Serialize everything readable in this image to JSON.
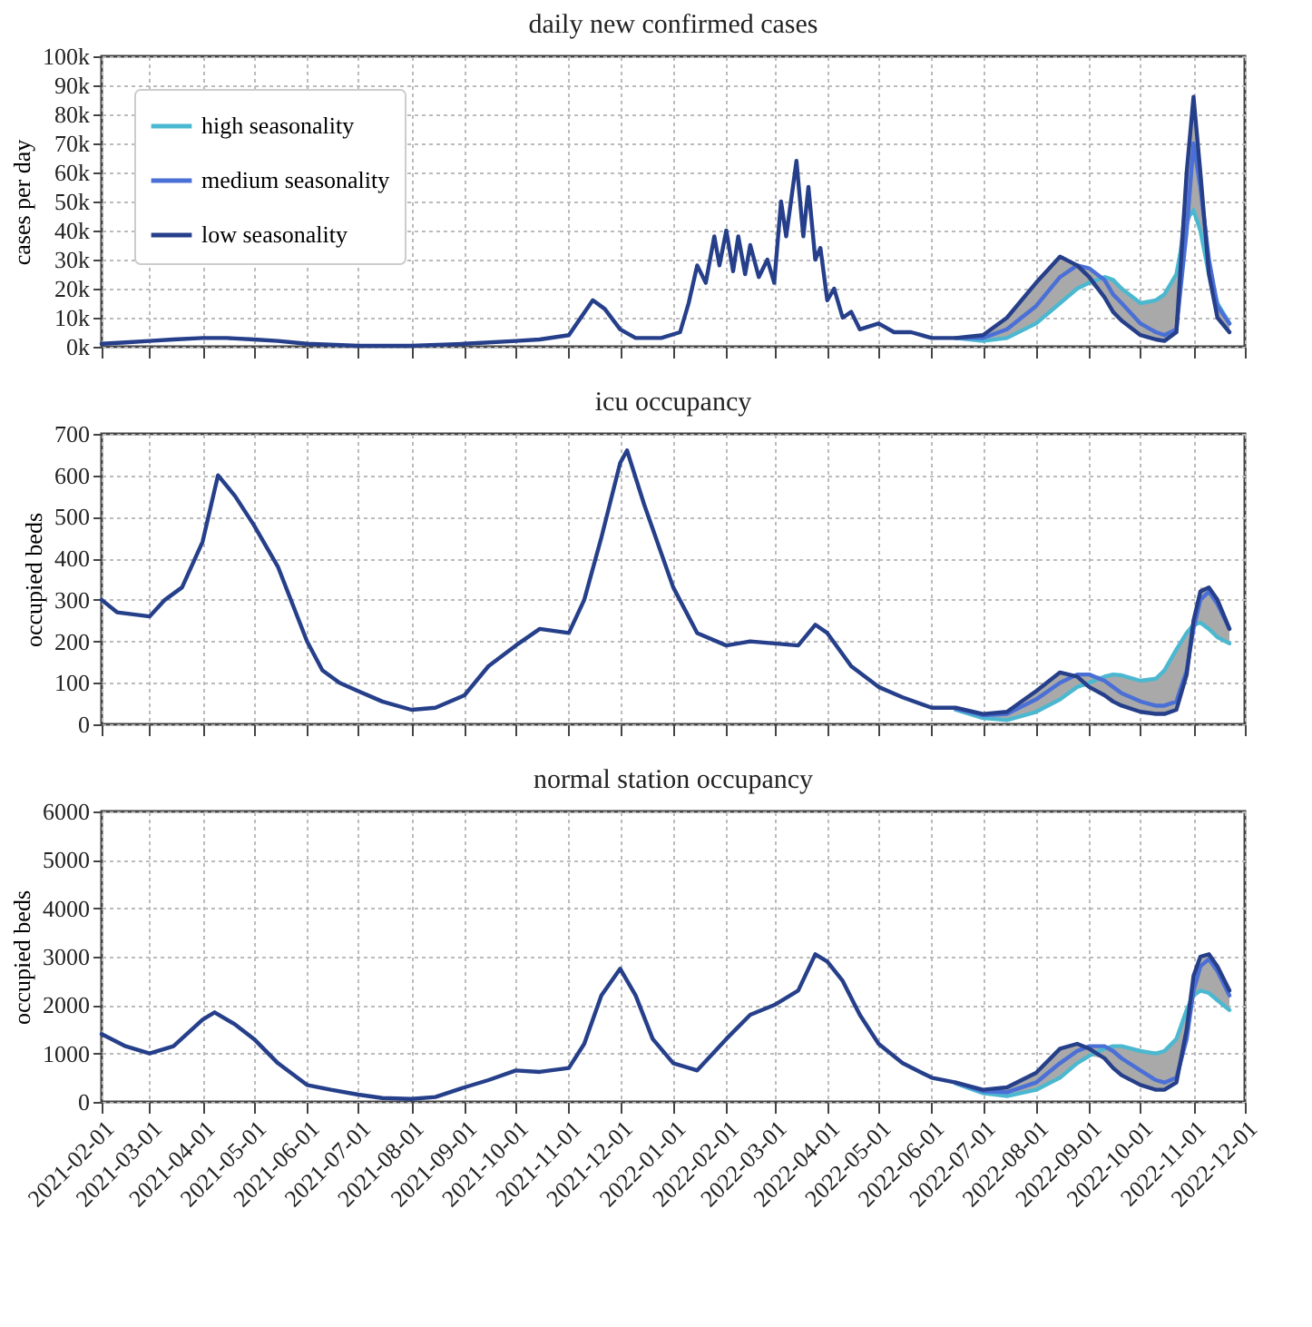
{
  "chart_data": [
    {
      "type": "line",
      "title": "daily new confirmed cases",
      "ylabel": "cases per day",
      "legend": "top left",
      "grid": true,
      "marker": "none",
      "line_style": "solid",
      "tick_labels": "y",
      "xlim": [
        "2021-02-01",
        "2022-12-01"
      ],
      "xticks": [
        "2021-02-01",
        "2021-03-01",
        "2021-04-01",
        "2021-05-01",
        "2021-06-01",
        "2021-07-01",
        "2021-08-01",
        "2021-09-01",
        "2021-10-01",
        "2021-11-01",
        "2021-12-01",
        "2022-01-01",
        "2022-02-01",
        "2022-03-01",
        "2022-04-01",
        "2022-05-01",
        "2022-06-01",
        "2022-07-01",
        "2022-08-01",
        "2022-09-01",
        "2022-10-01",
        "2022-11-01",
        "2022-12-01"
      ],
      "ylim": [
        0,
        100000
      ],
      "yticks": [
        {
          "value": 0,
          "label": "0k"
        },
        {
          "value": 10000,
          "label": "10k"
        },
        {
          "value": 20000,
          "label": "20k"
        },
        {
          "value": 30000,
          "label": "30k"
        },
        {
          "value": 40000,
          "label": "40k"
        },
        {
          "value": 50000,
          "label": "50k"
        },
        {
          "value": 60000,
          "label": "60k"
        },
        {
          "value": 70000,
          "label": "70k"
        },
        {
          "value": 80000,
          "label": "80k"
        },
        {
          "value": 90000,
          "label": "90k"
        },
        {
          "value": 100000,
          "label": "100k"
        }
      ],
      "series": [
        {
          "name": "high seasonality",
          "color": "#4bb8d0",
          "x": [
            "2022-06-15",
            "2022-07-01",
            "2022-07-15",
            "2022-08-01",
            "2022-08-15",
            "2022-08-25",
            "2022-09-01",
            "2022-09-10",
            "2022-09-15",
            "2022-09-20",
            "2022-10-01",
            "2022-10-10",
            "2022-10-15",
            "2022-10-22",
            "2022-10-28",
            "2022-11-01",
            "2022-11-05",
            "2022-11-10",
            "2022-11-15",
            "2022-11-22"
          ],
          "values": [
            3000,
            2000,
            3000,
            8000,
            15000,
            20000,
            22000,
            24000,
            23000,
            20000,
            15000,
            16000,
            18000,
            25000,
            44000,
            47000,
            40000,
            25000,
            15000,
            8000
          ]
        },
        {
          "name": "medium seasonality",
          "color": "#4a6fd6",
          "x": [
            "2022-06-15",
            "2022-07-01",
            "2022-07-15",
            "2022-08-01",
            "2022-08-15",
            "2022-08-25",
            "2022-09-01",
            "2022-09-10",
            "2022-09-15",
            "2022-09-20",
            "2022-10-01",
            "2022-10-10",
            "2022-10-15",
            "2022-10-22",
            "2022-10-28",
            "2022-11-01",
            "2022-11-05",
            "2022-11-10",
            "2022-11-15",
            "2022-11-22"
          ],
          "values": [
            3000,
            3000,
            6000,
            14000,
            24000,
            28000,
            27000,
            23000,
            18000,
            15000,
            8000,
            5000,
            4000,
            6000,
            40000,
            70000,
            55000,
            30000,
            14000,
            8000
          ],
          "lower": [
            3000,
            2000,
            3000,
            8000,
            15000,
            20000,
            22000,
            17000,
            12000,
            9000,
            4000,
            2500,
            2000,
            5000,
            40000,
            47000,
            40000,
            25000,
            10000,
            5000
          ],
          "upper": [
            3000,
            4000,
            10000,
            22000,
            31000,
            28000,
            27000,
            24000,
            23000,
            20000,
            15000,
            16000,
            18000,
            25000,
            60000,
            86000,
            60000,
            30000,
            15000,
            8000
          ]
        },
        {
          "name": "low seasonality",
          "color": "#263f8a",
          "x": [
            "2021-02-01",
            "2021-02-15",
            "2021-03-01",
            "2021-03-15",
            "2021-04-01",
            "2021-04-15",
            "2021-05-01",
            "2021-05-15",
            "2021-06-01",
            "2021-07-01",
            "2021-08-01",
            "2021-09-01",
            "2021-10-01",
            "2021-10-15",
            "2021-11-01",
            "2021-11-08",
            "2021-11-15",
            "2021-11-22",
            "2021-12-01",
            "2021-12-10",
            "2021-12-25",
            "2022-01-05",
            "2022-01-10",
            "2022-01-15",
            "2022-01-20",
            "2022-01-25",
            "2022-01-28",
            "2022-02-01",
            "2022-02-05",
            "2022-02-08",
            "2022-02-12",
            "2022-02-15",
            "2022-02-20",
            "2022-02-25",
            "2022-03-01",
            "2022-03-05",
            "2022-03-08",
            "2022-03-14",
            "2022-03-18",
            "2022-03-21",
            "2022-03-25",
            "2022-03-28",
            "2022-04-01",
            "2022-04-05",
            "2022-04-10",
            "2022-04-15",
            "2022-04-20",
            "2022-05-01",
            "2022-05-10",
            "2022-05-20",
            "2022-06-01",
            "2022-06-15",
            "2022-07-01",
            "2022-07-15",
            "2022-08-01",
            "2022-08-15",
            "2022-08-25",
            "2022-09-01",
            "2022-09-10",
            "2022-09-15",
            "2022-09-20",
            "2022-10-01",
            "2022-10-10",
            "2022-10-15",
            "2022-10-22",
            "2022-10-28",
            "2022-11-01",
            "2022-11-05",
            "2022-11-10",
            "2022-11-15",
            "2022-11-22"
          ],
          "values": [
            1000,
            1500,
            2000,
            2500,
            3000,
            3000,
            2500,
            2000,
            1000,
            300,
            300,
            1000,
            2000,
            2500,
            4000,
            10000,
            16000,
            13000,
            6000,
            3000,
            3000,
            5000,
            15000,
            28000,
            22000,
            38000,
            28000,
            40000,
            26000,
            38000,
            25000,
            35000,
            24000,
            30000,
            22000,
            50000,
            38000,
            64000,
            38000,
            55000,
            30000,
            34000,
            16000,
            20000,
            10000,
            12000,
            6000,
            8000,
            5000,
            5000,
            3000,
            3000,
            4000,
            10000,
            22000,
            31000,
            28000,
            24000,
            17000,
            12000,
            9000,
            4000,
            2500,
            2000,
            5000,
            60000,
            86000,
            60000,
            25000,
            10000,
            5000
          ]
        }
      ]
    },
    {
      "type": "line",
      "title": "icu occupancy",
      "ylabel": "occupied beds",
      "grid": true,
      "marker": "none",
      "line_style": "solid",
      "tick_labels": "y",
      "xlim": [
        "2021-02-01",
        "2022-12-01"
      ],
      "xticks": [
        "2021-02-01",
        "2021-03-01",
        "2021-04-01",
        "2021-05-01",
        "2021-06-01",
        "2021-07-01",
        "2021-08-01",
        "2021-09-01",
        "2021-10-01",
        "2021-11-01",
        "2021-12-01",
        "2022-01-01",
        "2022-02-01",
        "2022-03-01",
        "2022-04-01",
        "2022-05-01",
        "2022-06-01",
        "2022-07-01",
        "2022-08-01",
        "2022-09-01",
        "2022-10-01",
        "2022-11-01",
        "2022-12-01"
      ],
      "ylim": [
        0,
        700
      ],
      "yticks": [
        0,
        100,
        200,
        300,
        400,
        500,
        600,
        700
      ],
      "series": [
        {
          "color": "#4bb8d0",
          "x": [
            "2022-06-15",
            "2022-07-01",
            "2022-07-15",
            "2022-08-01",
            "2022-08-15",
            "2022-08-25",
            "2022-09-01",
            "2022-09-10",
            "2022-09-15",
            "2022-09-20",
            "2022-10-01",
            "2022-10-10",
            "2022-10-15",
            "2022-10-22",
            "2022-10-28",
            "2022-11-01",
            "2022-11-05",
            "2022-11-10",
            "2022-11-15",
            "2022-11-22"
          ],
          "values": [
            35,
            15,
            10,
            30,
            60,
            90,
            100,
            115,
            120,
            118,
            105,
            110,
            130,
            180,
            220,
            240,
            245,
            230,
            210,
            195
          ]
        },
        {
          "color": "#4a6fd6",
          "x": [
            "2022-06-15",
            "2022-07-01",
            "2022-07-15",
            "2022-08-01",
            "2022-08-15",
            "2022-08-25",
            "2022-09-01",
            "2022-09-10",
            "2022-09-15",
            "2022-09-20",
            "2022-10-01",
            "2022-10-10",
            "2022-10-15",
            "2022-10-22",
            "2022-10-28",
            "2022-11-01",
            "2022-11-05",
            "2022-11-10",
            "2022-11-15",
            "2022-11-22"
          ],
          "values": [
            38,
            22,
            25,
            60,
            100,
            120,
            120,
            105,
            90,
            75,
            55,
            45,
            45,
            55,
            130,
            230,
            300,
            320,
            290,
            230
          ],
          "lower": [
            35,
            15,
            10,
            30,
            60,
            90,
            90,
            70,
            55,
            45,
            30,
            25,
            25,
            35,
            120,
            230,
            245,
            230,
            210,
            195
          ],
          "upper": [
            40,
            25,
            30,
            80,
            125,
            120,
            120,
            115,
            120,
            118,
            105,
            110,
            130,
            180,
            220,
            250,
            330,
            330,
            300,
            230
          ]
        },
        {
          "color": "#263f8a",
          "x": [
            "2021-02-01",
            "2021-02-10",
            "2021-03-01",
            "2021-03-10",
            "2021-03-20",
            "2021-04-01",
            "2021-04-10",
            "2021-04-20",
            "2021-05-01",
            "2021-05-15",
            "2021-06-01",
            "2021-06-10",
            "2021-06-20",
            "2021-07-01",
            "2021-07-15",
            "2021-08-01",
            "2021-08-15",
            "2021-09-01",
            "2021-09-15",
            "2021-10-01",
            "2021-10-15",
            "2021-11-01",
            "2021-11-10",
            "2021-11-20",
            "2021-12-01",
            "2021-12-05",
            "2021-12-15",
            "2022-01-01",
            "2022-01-15",
            "2022-02-01",
            "2022-02-15",
            "2022-03-01",
            "2022-03-15",
            "2022-03-25",
            "2022-04-01",
            "2022-04-15",
            "2022-05-01",
            "2022-05-15",
            "2022-06-01",
            "2022-06-15",
            "2022-07-01",
            "2022-07-15",
            "2022-08-01",
            "2022-08-15",
            "2022-08-25",
            "2022-09-01",
            "2022-09-10",
            "2022-09-15",
            "2022-09-20",
            "2022-10-01",
            "2022-10-10",
            "2022-10-15",
            "2022-10-22",
            "2022-10-28",
            "2022-11-01",
            "2022-11-05",
            "2022-11-10",
            "2022-11-15",
            "2022-11-22"
          ],
          "values": [
            300,
            270,
            260,
            300,
            330,
            440,
            600,
            550,
            480,
            380,
            200,
            130,
            100,
            80,
            55,
            35,
            40,
            70,
            140,
            190,
            230,
            220,
            300,
            450,
            630,
            660,
            530,
            330,
            220,
            190,
            200,
            195,
            190,
            240,
            220,
            140,
            90,
            65,
            40,
            40,
            25,
            30,
            80,
            125,
            115,
            90,
            70,
            55,
            45,
            30,
            25,
            25,
            35,
            120,
            250,
            320,
            330,
            300,
            230
          ]
        }
      ]
    },
    {
      "type": "line",
      "title": "normal station occupancy",
      "ylabel": "occupied beds",
      "grid": true,
      "marker": "none",
      "line_style": "solid",
      "xlim": [
        "2021-02-01",
        "2022-12-01"
      ],
      "xticks": [
        "2021-02-01",
        "2021-03-01",
        "2021-04-01",
        "2021-05-01",
        "2021-06-01",
        "2021-07-01",
        "2021-08-01",
        "2021-09-01",
        "2021-10-01",
        "2021-11-01",
        "2021-12-01",
        "2022-01-01",
        "2022-02-01",
        "2022-03-01",
        "2022-04-01",
        "2022-05-01",
        "2022-06-01",
        "2022-07-01",
        "2022-08-01",
        "2022-09-01",
        "2022-10-01",
        "2022-11-01",
        "2022-12-01"
      ],
      "ylim": [
        0,
        6000
      ],
      "yticks": [
        0,
        1000,
        2000,
        3000,
        4000,
        5000,
        6000
      ],
      "series": [
        {
          "color": "#4bb8d0",
          "x": [
            "2022-06-15",
            "2022-07-01",
            "2022-07-15",
            "2022-08-01",
            "2022-08-15",
            "2022-08-25",
            "2022-09-01",
            "2022-09-10",
            "2022-09-15",
            "2022-09-20",
            "2022-10-01",
            "2022-10-10",
            "2022-10-15",
            "2022-10-22",
            "2022-10-28",
            "2022-11-01",
            "2022-11-05",
            "2022-11-10",
            "2022-11-15",
            "2022-11-22"
          ],
          "values": [
            380,
            180,
            120,
            250,
            500,
            800,
            950,
            1100,
            1150,
            1150,
            1050,
            1000,
            1050,
            1300,
            1900,
            2200,
            2300,
            2250,
            2100,
            1900
          ]
        },
        {
          "color": "#4a6fd6",
          "x": [
            "2022-06-15",
            "2022-07-01",
            "2022-07-15",
            "2022-08-01",
            "2022-08-15",
            "2022-08-25",
            "2022-09-01",
            "2022-09-10",
            "2022-09-15",
            "2022-09-20",
            "2022-10-01",
            "2022-10-10",
            "2022-10-15",
            "2022-10-22",
            "2022-10-28",
            "2022-11-01",
            "2022-11-05",
            "2022-11-10",
            "2022-11-15",
            "2022-11-22"
          ],
          "values": [
            400,
            220,
            200,
            400,
            800,
            1050,
            1150,
            1150,
            1050,
            900,
            650,
            450,
            400,
            500,
            1300,
            2300,
            2800,
            2950,
            2700,
            2200
          ],
          "lower": [
            380,
            180,
            120,
            250,
            500,
            800,
            950,
            900,
            700,
            550,
            350,
            250,
            250,
            400,
            1300,
            2200,
            2300,
            2250,
            2100,
            1900
          ],
          "upper": [
            400,
            250,
            300,
            600,
            1100,
            1200,
            1150,
            1150,
            1150,
            1150,
            1050,
            1000,
            1050,
            1300,
            1900,
            2600,
            3000,
            3050,
            2800,
            2300
          ]
        },
        {
          "color": "#263f8a",
          "x": [
            "2021-02-01",
            "2021-02-15",
            "2021-03-01",
            "2021-03-15",
            "2021-04-01",
            "2021-04-08",
            "2021-04-20",
            "2021-05-01",
            "2021-05-15",
            "2021-06-01",
            "2021-06-15",
            "2021-07-01",
            "2021-07-15",
            "2021-08-01",
            "2021-08-15",
            "2021-09-01",
            "2021-09-15",
            "2021-10-01",
            "2021-10-15",
            "2021-11-01",
            "2021-11-10",
            "2021-11-20",
            "2021-12-01",
            "2021-12-10",
            "2021-12-20",
            "2022-01-01",
            "2022-01-15",
            "2022-02-01",
            "2022-02-15",
            "2022-03-01",
            "2022-03-15",
            "2022-03-25",
            "2022-04-01",
            "2022-04-10",
            "2022-04-20",
            "2022-05-01",
            "2022-05-15",
            "2022-06-01",
            "2022-06-15",
            "2022-07-01",
            "2022-07-15",
            "2022-08-01",
            "2022-08-15",
            "2022-08-25",
            "2022-09-01",
            "2022-09-10",
            "2022-09-15",
            "2022-09-20",
            "2022-10-01",
            "2022-10-10",
            "2022-10-15",
            "2022-10-22",
            "2022-10-28",
            "2022-11-01",
            "2022-11-05",
            "2022-11-10",
            "2022-11-15",
            "2022-11-22"
          ],
          "values": [
            1400,
            1150,
            1000,
            1150,
            1700,
            1850,
            1600,
            1300,
            800,
            350,
            250,
            150,
            80,
            60,
            100,
            300,
            450,
            650,
            620,
            700,
            1200,
            2200,
            2750,
            2200,
            1300,
            800,
            650,
            1300,
            1800,
            2000,
            2300,
            3050,
            2900,
            2500,
            1800,
            1200,
            800,
            500,
            400,
            250,
            300,
            600,
            1100,
            1200,
            1100,
            900,
            700,
            550,
            350,
            250,
            250,
            400,
            1500,
            2600,
            3000,
            3050,
            2800,
            2300
          ]
        }
      ]
    }
  ]
}
